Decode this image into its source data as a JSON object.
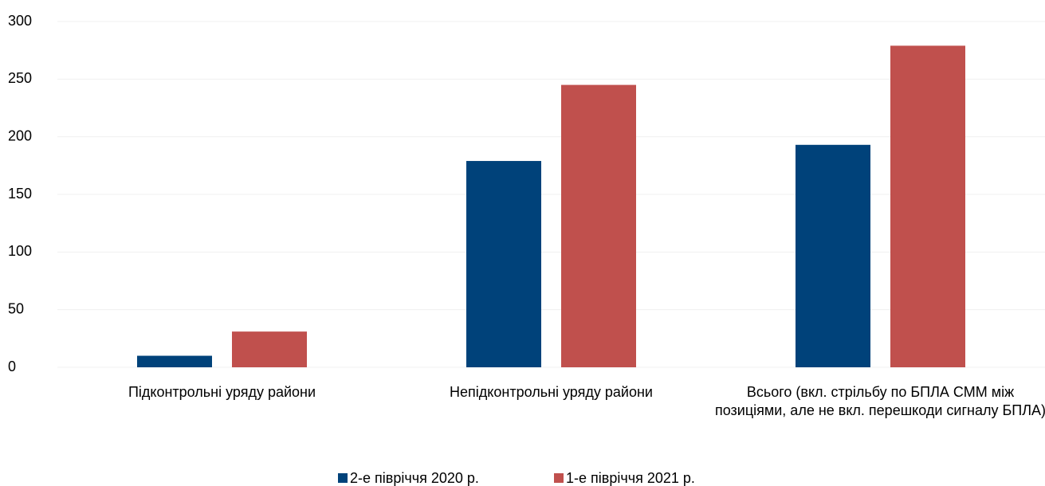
{
  "chart_data": {
    "type": "bar",
    "categories": [
      "Підконтрольні уряду райони",
      "Непідконтрольні уряду райони",
      "Всього (вкл. стрільбу по БПЛА СММ між позиціями, але не вкл. перешкоди сигналу БПЛА)"
    ],
    "series": [
      {
        "name": "2-е півріччя 2020 р.",
        "color": "#00427a",
        "values": [
          10,
          179,
          193
        ]
      },
      {
        "name": "1-е півріччя 2021 р.",
        "color": "#c0504d",
        "values": [
          31,
          245,
          279
        ]
      }
    ],
    "ylim": [
      0,
      300
    ],
    "yticks": [
      0,
      50,
      100,
      150,
      200,
      250,
      300
    ],
    "grid": true,
    "legend": "bottom"
  }
}
